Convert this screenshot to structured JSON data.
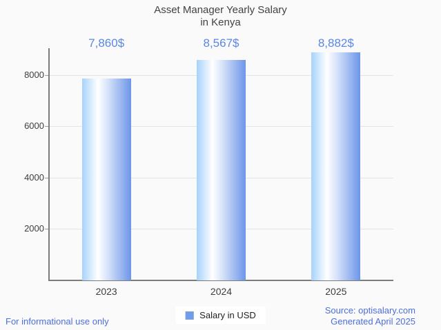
{
  "title": {
    "line1": "Asset Manager Yearly Salary",
    "line2": "in Kenya"
  },
  "chart_data": {
    "type": "bar",
    "title": "Asset Manager Yearly Salary in Kenya",
    "categories": [
      "2023",
      "2024",
      "2025"
    ],
    "series": [
      {
        "name": "Salary in USD",
        "values": [
          7860,
          8567,
          8882
        ]
      }
    ],
    "value_labels": [
      "7,860$",
      "8,567$",
      "8,882$"
    ],
    "xlabel": "",
    "ylabel": "",
    "y_ticks": [
      2000,
      4000,
      6000,
      8000
    ],
    "ylim": [
      0,
      9035
    ],
    "grid": true,
    "legend_position": "bottom-center"
  },
  "legend": {
    "label": "Salary in USD"
  },
  "footer": {
    "left": "For informational use only",
    "source": "Source: optisalary.com",
    "generated": "Generated April 2025"
  },
  "colors": {
    "background": "#fafafa",
    "title_text": "#424242",
    "axis_text": "#3d3d3d",
    "value_label_blue": "#5b86e5",
    "footer_blue": "#4b6fdc",
    "axis_line": "#7c7c7c",
    "tick_mark": "#9c9c9c",
    "grid_line": "#e4e4e4",
    "bar_gradient_left": "#a6d2fb",
    "bar_gradient_mid": "#ffffff",
    "bar_gradient_right": "#6d96e8",
    "legend_marker_fill": "#6d9eeb"
  }
}
